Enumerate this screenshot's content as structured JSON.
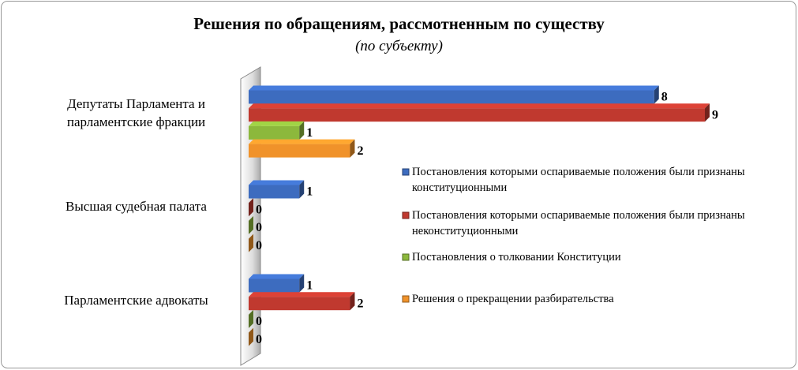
{
  "chart_data": {
    "type": "bar",
    "orientation": "horizontal",
    "title": "Решения по обращениям, рассмотненным по существу",
    "subtitle": "(по субъекту)",
    "categories": [
      "Депутаты Парламента и парламентские фракции",
      "Высшая судебная палата",
      "Парламентские адвокаты"
    ],
    "series": [
      {
        "name": "Постановления которыми оспариваемые положения были признаны конституционными",
        "color": "#3d6cbf",
        "values": [
          8,
          1,
          1
        ]
      },
      {
        "name": "Постановления которыми оспариваемые положения были признаны неконституционными",
        "color": "#c0392f",
        "values": [
          9,
          0,
          2
        ]
      },
      {
        "name": "Постановления о толковании Конституции",
        "color": "#8cb83c",
        "values": [
          1,
          0,
          0
        ]
      },
      {
        "name": "Решения о прекращении разбирательства",
        "color": "#f0922a",
        "values": [
          2,
          0,
          0
        ]
      }
    ],
    "xlim": [
      0,
      9
    ],
    "legend": "right"
  }
}
